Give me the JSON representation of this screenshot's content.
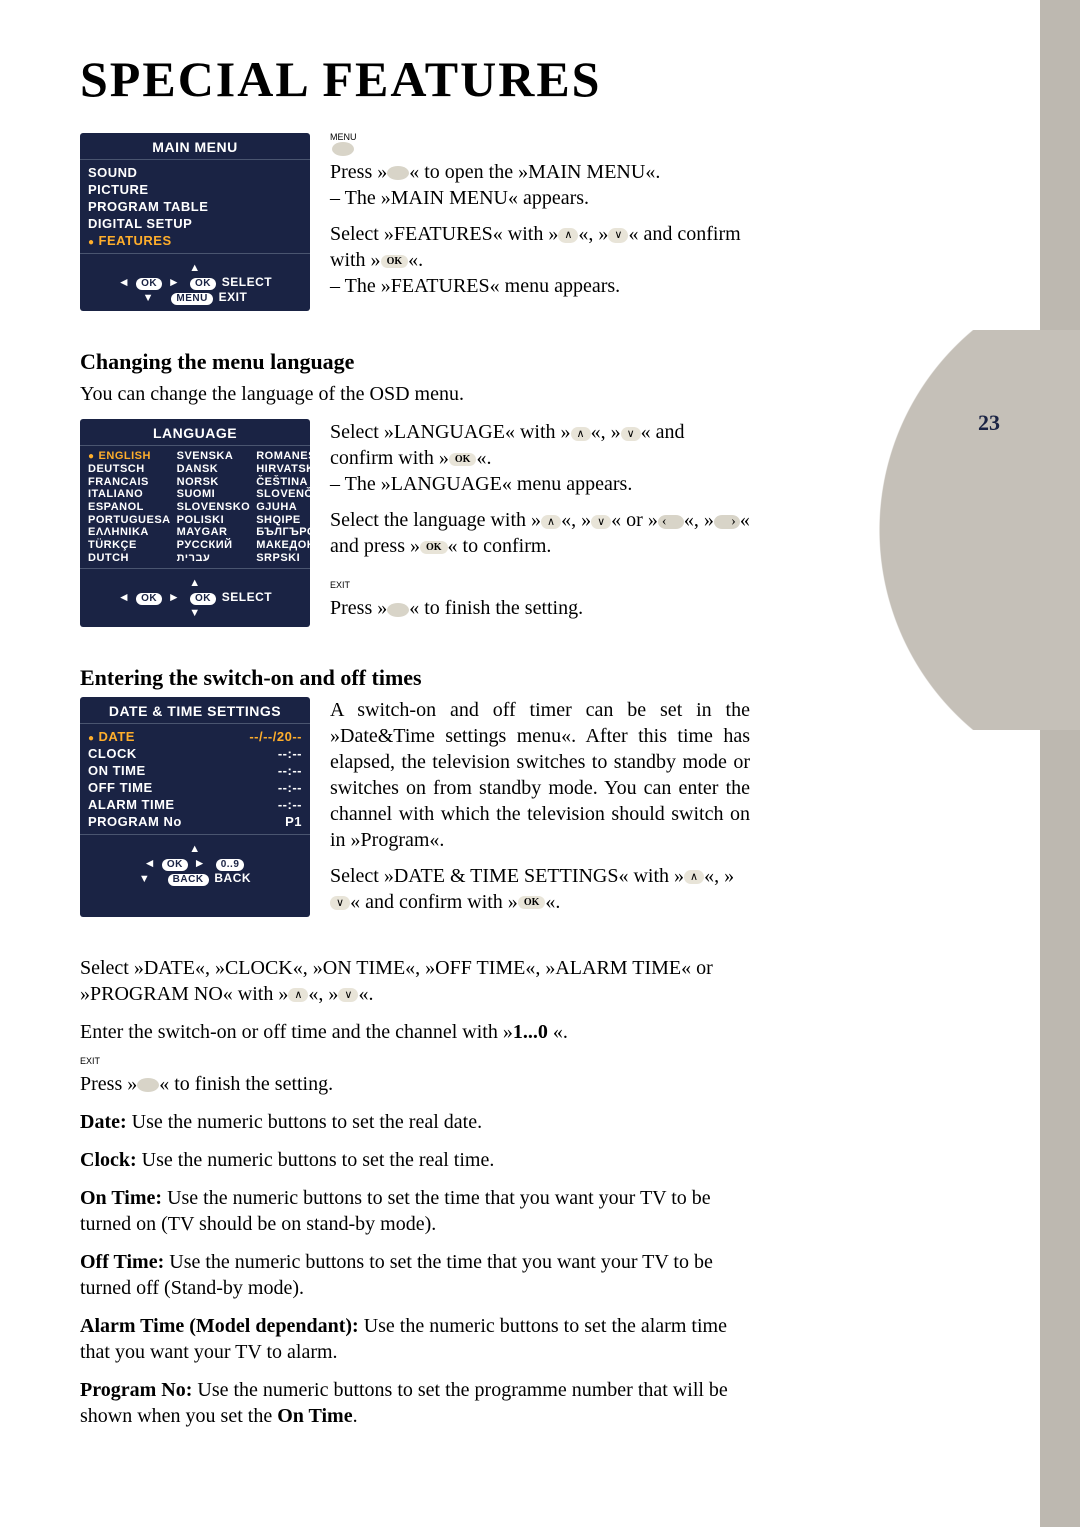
{
  "title": "SPECIAL FEATURES",
  "page_number": "23",
  "colors": {
    "osd_bg": "#1a2344",
    "osd_text": "#ffffff",
    "osd_highlight": "#ffae2b",
    "strip": "#bdb8b0",
    "curve": "#c5c0b8"
  },
  "main_menu_osd": {
    "title": "MAIN MENU",
    "items": [
      "SOUND",
      "PICTURE",
      "PROGRAM TABLE",
      "DIGITAL SETUP",
      "FEATURES"
    ],
    "selected_index": 4,
    "foot_select": "SELECT",
    "foot_exit": "EXIT",
    "badge_ok": "OK",
    "badge_menu": "MENU"
  },
  "intro": {
    "menu_label": "MENU",
    "p1a": "Press »",
    "p1b": "« to open the »MAIN MENU«.",
    "p1c": "– The »MAIN MENU« appears.",
    "p2a": "Select »FEATURES« with »",
    "p2b": "«, »",
    "p2c": "« and confirm with »",
    "p2d": "«.",
    "p2e": "– The »FEATURES« menu appears.",
    "ok": "OK"
  },
  "section_lang": {
    "heading": "Changing the menu language",
    "lead": "You can change the language of the OSD menu.",
    "osd_title": "LANGUAGE",
    "col1": [
      "ENGLISH",
      "DEUTSCH",
      "FRANCAIS",
      "ITALIANO",
      "ESPANOL",
      "PORTUGUESA",
      "EΛΛHNIKA",
      "TÜRKÇE",
      "DUTCH"
    ],
    "col2": [
      "SVENSKA",
      "DANSK",
      "NORSK",
      "SUOMI",
      "SLOVENSKO",
      "POLISKI",
      "MAYGAR",
      "РУССКИЙ",
      "עברית"
    ],
    "col3": [
      "ROMANESTE",
      "HIRVATSKI",
      "ČEŠTINA",
      "SLOVENČINA",
      "GJUHA SHQIPE",
      "БЪЛГЪРСКИ",
      "МАКЕДОНСКИ",
      "SRPSKI"
    ],
    "foot_select": "SELECT",
    "p1a": "Select »LANGUAGE« with »",
    "p1b": "«, »",
    "p1c": "« and confirm  with »",
    "p1d": "«.",
    "p1e": "– The »LANGUAGE« menu appears.",
    "p2a": "Select the language with »",
    "p2b": "«, »",
    "p2c": "« or »",
    "p2d": "«, »",
    "p2e": "« and press »",
    "p2f": "« to confirm.",
    "exit_label": "EXIT",
    "p3a": "Press »",
    "p3b": "« to finish the setting.",
    "ok": "OK"
  },
  "section_time": {
    "heading": "Entering the switch-on and off times",
    "osd_title": "DATE & TIME SETTINGS",
    "rows": [
      {
        "k": "DATE",
        "v": "--/--/20--",
        "sel": true
      },
      {
        "k": "CLOCK",
        "v": "--:--"
      },
      {
        "k": "ON TIME",
        "v": "--:--"
      },
      {
        "k": "OFF TIME",
        "v": "--:--"
      },
      {
        "k": "ALARM TIME",
        "v": "--:--"
      },
      {
        "k": "PROGRAM No",
        "v": "P1"
      }
    ],
    "foot_badge_num": "0..9",
    "foot_back": "BACK",
    "badge_back": "BACK",
    "p1": "A switch-on and off timer can be set in the »Date&Time settings menu«. After this time has elapsed, the television switches to standby mode or switches on from standby mode. You can enter the channel  with  which the television should switch on in »Program«.",
    "p2a": "Select »DATE & TIME SETTINGS« with »",
    "p2b": "«, »",
    "p2c": "« and confirm with »",
    "p2d": "«.",
    "ok": "OK",
    "p3a": "Select »DATE«, »CLOCK«, »ON TIME«, »OFF TIME«, »ALARM TIME« or »PROGRAM NO« with »",
    "p3b": "«, »",
    "p3c": "«.",
    "p4a": "Enter the switch-on or off time and the channel with »",
    "p4b": "1...0",
    "p4c": " «.",
    "exit_label": "EXIT",
    "p5a": "Press »",
    "p5b": "« to finish the setting.",
    "defs": [
      {
        "t": "Date:",
        "d": " Use the numeric buttons to set the real date."
      },
      {
        "t": "Clock:",
        "d": " Use the numeric buttons to set the real time."
      },
      {
        "t": "On Time:",
        "d": " Use the numeric buttons to set the time that you want your TV to be turned on (TV should be on stand-by mode)."
      },
      {
        "t": "Off Time:",
        "d": " Use the numeric buttons to set the time that you want your TV to be turned off (Stand-by mode)."
      },
      {
        "t": "Alarm Time (Model dependant):",
        "d": " Use the numeric buttons to set the alarm time that you want your TV to alarm."
      },
      {
        "t": "Program No:",
        "d": " Use the numeric buttons to set the programme number that will be shown when you set the "
      },
      {
        "t2": "On Time",
        "d2": "."
      }
    ]
  }
}
